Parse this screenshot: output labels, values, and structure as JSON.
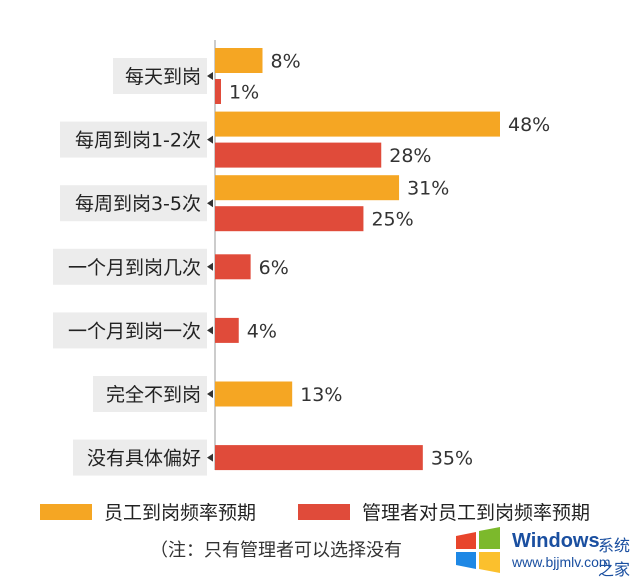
{
  "chart_data": {
    "type": "bar",
    "orientation": "horizontal",
    "categories": [
      "每天到岗",
      "每周到岗1-2次",
      "每周到岗3-5次",
      "一个月到岗几次",
      "一个月到岗一次",
      "完全不到岗",
      "没有具体偏好"
    ],
    "series": [
      {
        "name": "员工到岗频率预期",
        "color": "#F5A623",
        "values": [
          8,
          48,
          31,
          null,
          null,
          13,
          null
        ],
        "labels": [
          "8%",
          "48%",
          "31%",
          "",
          "",
          "13%",
          ""
        ]
      },
      {
        "name": "管理者对员工到岗频率预期",
        "color": "#E04B3A",
        "values": [
          1,
          28,
          25,
          6,
          4,
          null,
          35
        ],
        "labels": [
          "1%",
          "28%",
          "25%",
          "6%",
          "4%",
          "",
          "35%"
        ]
      }
    ],
    "xlim": [
      0,
      48
    ],
    "legend_position": "bottom",
    "grid": false
  },
  "note": "（注：只有管理者可以选择没有",
  "watermark": {
    "brand": "Windows",
    "brand_cn": "系统之家",
    "url": "www.bjjmlv.com"
  }
}
